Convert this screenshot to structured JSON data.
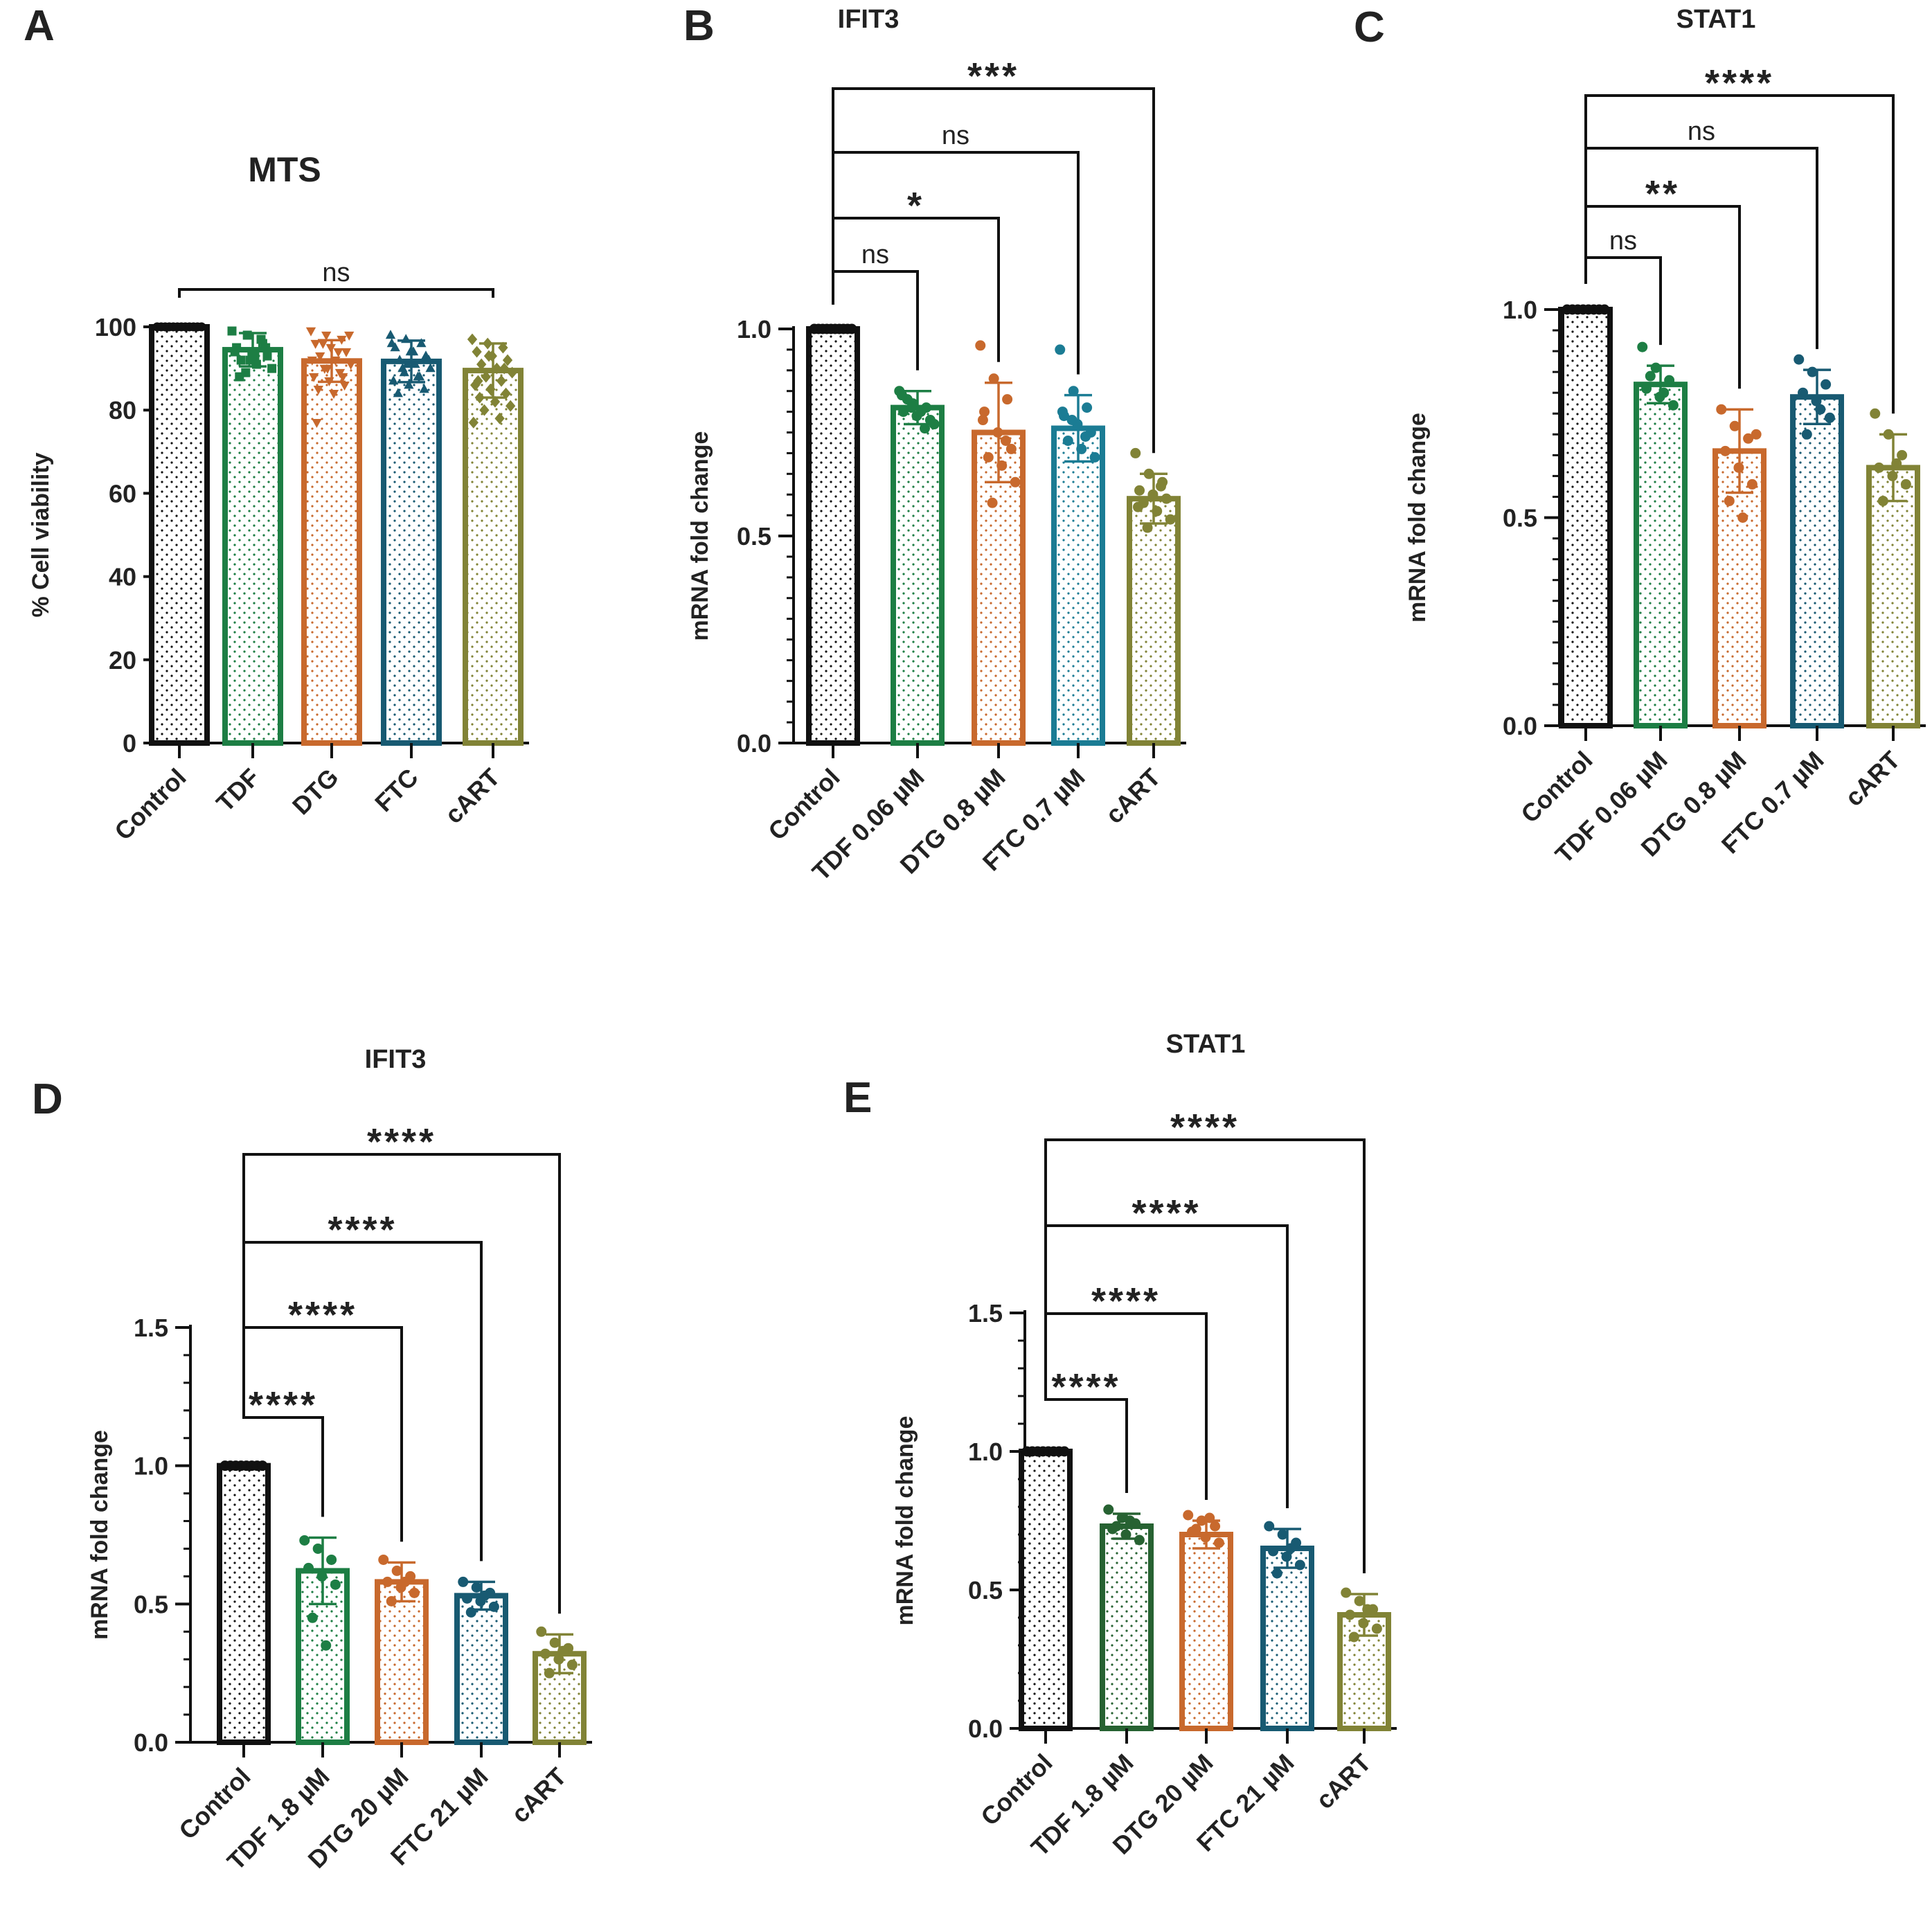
{
  "figure": {
    "panels": [
      "A",
      "B",
      "C",
      "D",
      "E"
    ]
  },
  "colors": {
    "control": "#111111",
    "tdf": "#1d7e44",
    "dtg": "#c8692d",
    "ftc": "#185a72",
    "cart": "#818336",
    "tdf_dark": "#276232",
    "ftc_b": "#1b7c94"
  },
  "chart_data": [
    {
      "panel": "A",
      "type": "bar",
      "title": "MTS",
      "xlabel": "",
      "ylabel": "% Cell viability",
      "ylim": [
        0,
        100
      ],
      "yticks": [
        0,
        20,
        40,
        60,
        80,
        100
      ],
      "ytick_labels": [
        "0",
        "20",
        "40",
        "60",
        "80",
        "100"
      ],
      "categories": [
        "Control",
        "TDF",
        "DTG",
        "FTC",
        "cART"
      ],
      "values": [
        100,
        94.5,
        91.8,
        91.7,
        89.5
      ],
      "errors": [
        0,
        4,
        5,
        5,
        6.5
      ],
      "series_colors": [
        "control",
        "tdf",
        "dtg",
        "ftc",
        "cart"
      ],
      "markers": [
        "circle",
        "square",
        "triangle-down",
        "triangle-up",
        "diamond"
      ],
      "points": [
        [
          100,
          100,
          100,
          100,
          100,
          100,
          100,
          100,
          100,
          100,
          100,
          100
        ],
        [
          99,
          98,
          96,
          95,
          94,
          93,
          92,
          91,
          90,
          89,
          97,
          94,
          92,
          95,
          88,
          93
        ],
        [
          99,
          98,
          97,
          96,
          95,
          94,
          93,
          92,
          91,
          90,
          89,
          88,
          87,
          86,
          85,
          84,
          98,
          96,
          94,
          92,
          90,
          88,
          77
        ],
        [
          98,
          97,
          96,
          95,
          94,
          93,
          92,
          91,
          90,
          89,
          88,
          87,
          86,
          85,
          84,
          94,
          92,
          90,
          88,
          96,
          91
        ],
        [
          97,
          96,
          95,
          94,
          93,
          92,
          91,
          90,
          89,
          88,
          87,
          86,
          85,
          84,
          83,
          82,
          81,
          80,
          78,
          77,
          93,
          90,
          87
        ]
      ],
      "significance": [
        {
          "from": 0,
          "to": 4,
          "label": "ns"
        }
      ]
    },
    {
      "panel": "B",
      "type": "bar",
      "title": "IFIT3",
      "ylabel": "mRNA fold change",
      "ylim": [
        0,
        1.0
      ],
      "yticks": [
        0,
        0.5,
        1.0
      ],
      "ytick_labels": [
        "0.0",
        "0.5",
        "1.0"
      ],
      "categories": [
        "Control",
        "TDF 0.06 µM",
        "DTG 0.8 µM",
        "FTC 0.7 µM",
        "cART"
      ],
      "values": [
        1.0,
        0.81,
        0.75,
        0.76,
        0.59
      ],
      "errors": [
        0,
        0.04,
        0.12,
        0.08,
        0.06
      ],
      "series_colors": [
        "control",
        "tdf",
        "dtg",
        "ftc_b",
        "cart"
      ],
      "markers": [
        "circle",
        "circle",
        "circle",
        "circle",
        "circle"
      ],
      "points": [
        [
          1,
          1,
          1,
          1,
          1,
          1,
          1,
          1,
          1,
          1
        ],
        [
          0.85,
          0.82,
          0.81,
          0.8,
          0.79,
          0.78,
          0.83,
          0.8,
          0.77,
          0.81,
          0.76,
          0.84
        ],
        [
          0.96,
          0.88,
          0.83,
          0.8,
          0.75,
          0.71,
          0.69,
          0.67,
          0.63,
          0.58,
          0.73,
          0.78
        ],
        [
          0.95,
          0.85,
          0.81,
          0.79,
          0.77,
          0.75,
          0.73,
          0.71,
          0.69,
          0.78,
          0.74,
          0.8
        ],
        [
          0.7,
          0.65,
          0.63,
          0.61,
          0.6,
          0.59,
          0.58,
          0.56,
          0.54,
          0.52,
          0.62,
          0.57
        ]
      ],
      "significance": [
        {
          "from": 0,
          "to": 1,
          "label": "ns"
        },
        {
          "from": 0,
          "to": 2,
          "label": "*"
        },
        {
          "from": 0,
          "to": 3,
          "label": "ns"
        },
        {
          "from": 0,
          "to": 4,
          "label": "***"
        }
      ]
    },
    {
      "panel": "C",
      "type": "bar",
      "title": "STAT1",
      "ylabel": "mRNA fold change",
      "ylim": [
        0,
        1.0
      ],
      "yticks": [
        0,
        0.5,
        1.0
      ],
      "ytick_labels": [
        "0.0",
        "0.5",
        "1.0"
      ],
      "categories": [
        "Control",
        "TDF 0.06 µM",
        "DTG 0.8 µM",
        "FTC 0.7 µM",
        "cART"
      ],
      "values": [
        1.0,
        0.82,
        0.66,
        0.79,
        0.62
      ],
      "errors": [
        0,
        0.045,
        0.1,
        0.065,
        0.08
      ],
      "series_colors": [
        "control",
        "tdf",
        "dtg",
        "ftc",
        "cart"
      ],
      "markers": [
        "circle",
        "circle",
        "circle",
        "circle",
        "circle"
      ],
      "points": [
        [
          1,
          1,
          1,
          1,
          1,
          1,
          1,
          1
        ],
        [
          0.91,
          0.86,
          0.83,
          0.81,
          0.79,
          0.77,
          0.84,
          0.8
        ],
        [
          0.76,
          0.72,
          0.69,
          0.66,
          0.62,
          0.58,
          0.54,
          0.5,
          0.7
        ],
        [
          0.88,
          0.85,
          0.82,
          0.8,
          0.78,
          0.74,
          0.7,
          0.76
        ],
        [
          0.75,
          0.7,
          0.65,
          0.62,
          0.6,
          0.58,
          0.54,
          0.63
        ]
      ],
      "significance": [
        {
          "from": 0,
          "to": 1,
          "label": "ns"
        },
        {
          "from": 0,
          "to": 2,
          "label": "**"
        },
        {
          "from": 0,
          "to": 3,
          "label": "ns"
        },
        {
          "from": 0,
          "to": 4,
          "label": "****"
        }
      ]
    },
    {
      "panel": "D",
      "type": "bar",
      "title": "IFIT3",
      "ylabel": "mRNA fold change",
      "ylim": [
        0,
        1.5
      ],
      "yticks": [
        0,
        0.5,
        1.0,
        1.5
      ],
      "ytick_labels": [
        "0.0",
        "0.5",
        "1.0",
        "1.5"
      ],
      "categories": [
        "Control",
        "TDF 1.8 µM",
        "DTG 20 µM",
        "FTC 21 µM",
        "cART"
      ],
      "values": [
        1.0,
        0.62,
        0.58,
        0.53,
        0.32
      ],
      "errors": [
        0,
        0.12,
        0.07,
        0.05,
        0.07
      ],
      "series_colors": [
        "control",
        "tdf",
        "dtg",
        "ftc",
        "cart"
      ],
      "markers": [
        "circle",
        "circle",
        "circle",
        "circle",
        "circle"
      ],
      "points": [
        [
          1,
          1,
          1,
          1,
          1,
          1,
          1,
          1
        ],
        [
          0.73,
          0.7,
          0.66,
          0.63,
          0.6,
          0.57,
          0.45,
          0.35
        ],
        [
          0.66,
          0.62,
          0.6,
          0.58,
          0.56,
          0.54,
          0.51,
          0.58
        ],
        [
          0.58,
          0.56,
          0.54,
          0.52,
          0.51,
          0.49,
          0.47,
          0.53
        ],
        [
          0.4,
          0.36,
          0.34,
          0.32,
          0.3,
          0.28,
          0.25,
          0.33
        ]
      ],
      "significance": [
        {
          "from": 0,
          "to": 1,
          "label": "****"
        },
        {
          "from": 0,
          "to": 2,
          "label": "****"
        },
        {
          "from": 0,
          "to": 3,
          "label": "****"
        },
        {
          "from": 0,
          "to": 4,
          "label": "****"
        }
      ]
    },
    {
      "panel": "E",
      "type": "bar",
      "title": "STAT1",
      "ylabel": "mRNA fold change",
      "ylim": [
        0,
        1.5
      ],
      "yticks": [
        0,
        0.5,
        1.0,
        1.5
      ],
      "ytick_labels": [
        "0.0",
        "0.5",
        "1.0",
        "1.5"
      ],
      "categories": [
        "Control",
        "TDF 1.8 µM",
        "DTG 20 µM",
        "FTC 21 µM",
        "cART"
      ],
      "values": [
        1.0,
        0.73,
        0.7,
        0.65,
        0.41
      ],
      "errors": [
        0,
        0.045,
        0.05,
        0.07,
        0.075
      ],
      "series_colors": [
        "control",
        "tdf_dark",
        "dtg",
        "ftc",
        "cart"
      ],
      "markers": [
        "circle",
        "circle",
        "circle",
        "circle",
        "circle"
      ],
      "points": [
        [
          1,
          1,
          1,
          1,
          1,
          1,
          1,
          1
        ],
        [
          0.79,
          0.76,
          0.74,
          0.72,
          0.7,
          0.68,
          0.73,
          0.75
        ],
        [
          0.77,
          0.75,
          0.73,
          0.71,
          0.69,
          0.67,
          0.72,
          0.76
        ],
        [
          0.73,
          0.7,
          0.67,
          0.64,
          0.62,
          0.59,
          0.56,
          0.65
        ],
        [
          0.49,
          0.46,
          0.43,
          0.41,
          0.38,
          0.36,
          0.33,
          0.43
        ]
      ],
      "significance": [
        {
          "from": 0,
          "to": 1,
          "label": "****"
        },
        {
          "from": 0,
          "to": 2,
          "label": "****"
        },
        {
          "from": 0,
          "to": 3,
          "label": "****"
        },
        {
          "from": 0,
          "to": 4,
          "label": "****"
        }
      ]
    }
  ]
}
